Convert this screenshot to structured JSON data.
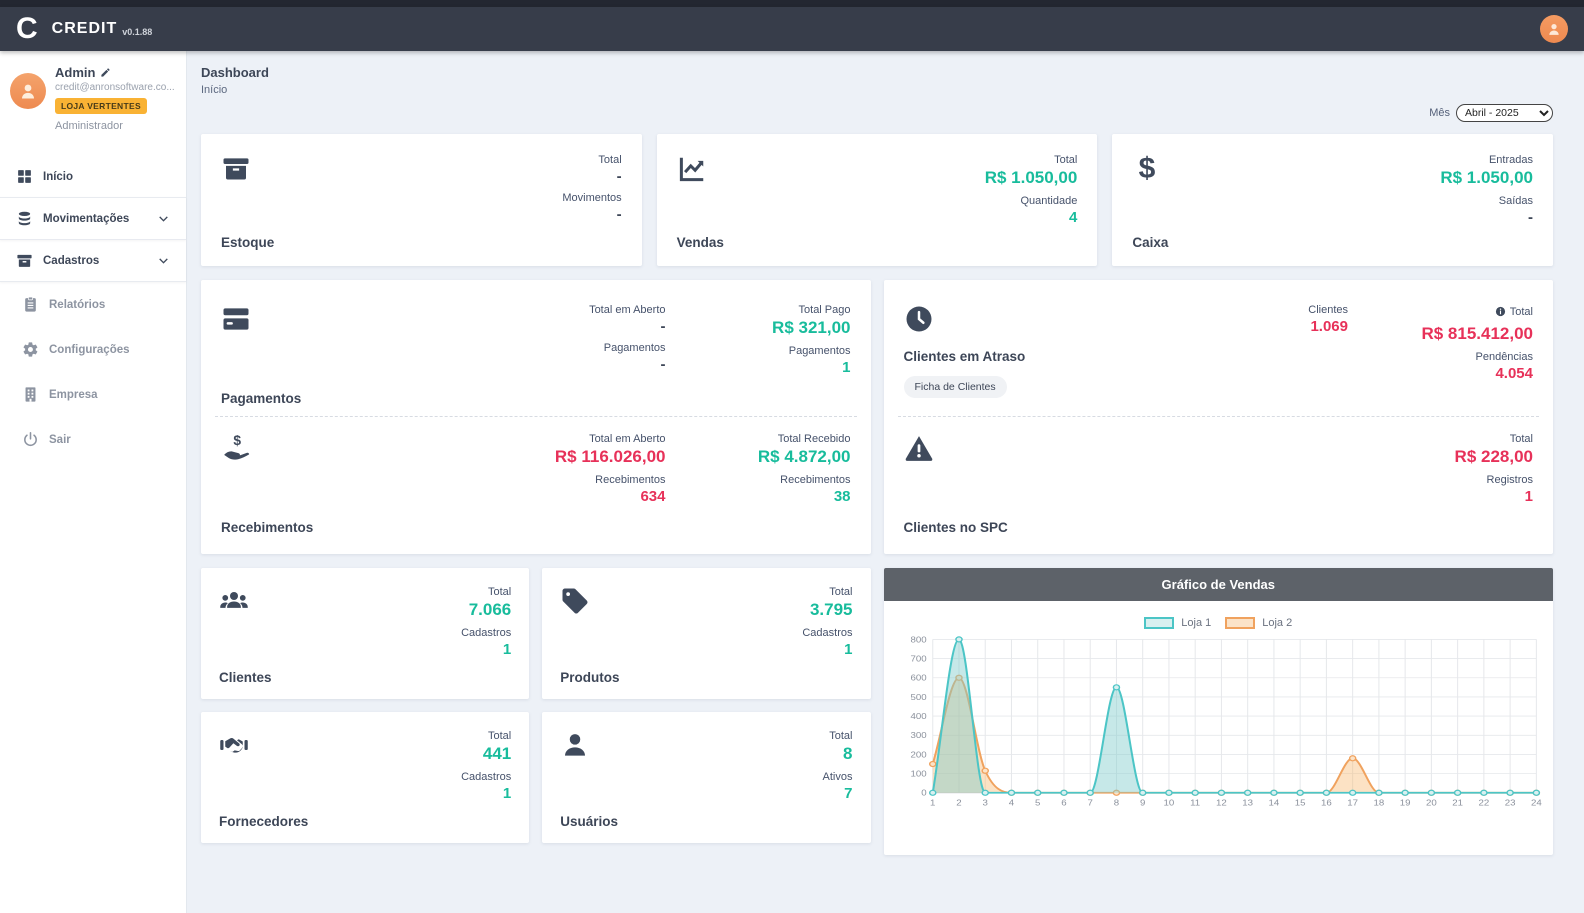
{
  "colors": {
    "teal": "#18bc9c",
    "red": "#e73159",
    "badge_orange": "#f9b234",
    "navbar": "#373d4a",
    "chart_header": "#5d6269",
    "background": "#edf1f7"
  },
  "app": {
    "logo_letter": "C",
    "name": "CREDIT",
    "version": "v0.1.88"
  },
  "user": {
    "name": "Admin",
    "email": "credit@anronsoftware.co...",
    "badge": "LOJA VERTENTES",
    "role": "Administrador"
  },
  "sidebar": {
    "items": [
      {
        "label": "Início"
      },
      {
        "label": "Movimentações"
      },
      {
        "label": "Cadastros"
      },
      {
        "label": "Relatórios"
      },
      {
        "label": "Configurações"
      },
      {
        "label": "Empresa"
      },
      {
        "label": "Sair"
      }
    ]
  },
  "page": {
    "title": "Dashboard",
    "breadcrumb": "Início",
    "month_label": "Mês",
    "month_value": "Abril - 2025"
  },
  "cards": {
    "estoque": {
      "title": "Estoque",
      "stat1_label": "Total",
      "stat1_value": "-",
      "stat2_label": "Movimentos",
      "stat2_value": "-"
    },
    "vendas": {
      "title": "Vendas",
      "stat1_label": "Total",
      "stat1_value": "R$ 1.050,00",
      "stat2_label": "Quantidade",
      "stat2_value": "4"
    },
    "caixa": {
      "title": "Caixa",
      "stat1_label": "Entradas",
      "stat1_value": "R$ 1.050,00",
      "stat2_label": "Saídas",
      "stat2_value": "-"
    },
    "pagamentos": {
      "title": "Pagamentos",
      "open_label": "Total em Aberto",
      "open_value": "-",
      "open_count_label": "Pagamentos",
      "open_count_value": "-",
      "paid_label": "Total Pago",
      "paid_value": "R$ 321,00",
      "paid_count_label": "Pagamentos",
      "paid_count_value": "1"
    },
    "recebimentos": {
      "title": "Recebimentos",
      "open_label": "Total em Aberto",
      "open_value": "R$ 116.026,00",
      "open_count_label": "Recebimentos",
      "open_count_value": "634",
      "received_label": "Total Recebido",
      "received_value": "R$ 4.872,00",
      "received_count_label": "Recebimentos",
      "received_count_value": "38"
    },
    "clientes_atraso": {
      "title": "Clientes em Atraso",
      "button": "Ficha de Clientes",
      "clients_label": "Clientes",
      "clients_value": "1.069",
      "total_label": "Total",
      "total_value": "R$ 815.412,00",
      "pending_label": "Pendências",
      "pending_value": "4.054"
    },
    "clientes_spc": {
      "title": "Clientes no SPC",
      "total_label": "Total",
      "total_value": "R$ 228,00",
      "reg_label": "Registros",
      "reg_value": "1"
    },
    "clientes": {
      "title": "Clientes",
      "stat1_label": "Total",
      "stat1_value": "7.066",
      "stat2_label": "Cadastros",
      "stat2_value": "1"
    },
    "produtos": {
      "title": "Produtos",
      "stat1_label": "Total",
      "stat1_value": "3.795",
      "stat2_label": "Cadastros",
      "stat2_value": "1"
    },
    "fornecedores": {
      "title": "Fornecedores",
      "stat1_label": "Total",
      "stat1_value": "441",
      "stat2_label": "Cadastros",
      "stat2_value": "1"
    },
    "usuarios": {
      "title": "Usuários",
      "stat1_label": "Total",
      "stat1_value": "8",
      "stat2_label": "Ativos",
      "stat2_value": "7"
    }
  },
  "chart_data": {
    "type": "line",
    "title": "Gráfico de Vendas",
    "x": [
      1,
      2,
      3,
      4,
      5,
      6,
      7,
      8,
      9,
      10,
      11,
      12,
      13,
      14,
      15,
      16,
      17,
      18,
      19,
      20,
      21,
      22,
      23,
      24
    ],
    "series": [
      {
        "name": "Loja 1",
        "color": "#4cc5c6",
        "fill": "rgba(128,203,205,0.45)",
        "point_fill": "#d9f0f0",
        "values": [
          0,
          800,
          0,
          0,
          0,
          0,
          0,
          550,
          0,
          0,
          0,
          0,
          0,
          0,
          0,
          0,
          0,
          0,
          0,
          0,
          0,
          0,
          0,
          0
        ]
      },
      {
        "name": "Loja 2",
        "color": "#f0a25e",
        "fill": "rgba(247,178,100,0.38)",
        "point_fill": "#fbe3c8",
        "values": [
          150,
          600,
          115,
          0,
          0,
          0,
          0,
          0,
          0,
          0,
          0,
          0,
          0,
          0,
          0,
          0,
          180,
          0,
          0,
          0,
          0,
          0,
          0,
          0
        ]
      }
    ],
    "ylim": [
      0,
      800
    ],
    "ytick_step": 100,
    "grid": true,
    "legend_position": "top"
  }
}
